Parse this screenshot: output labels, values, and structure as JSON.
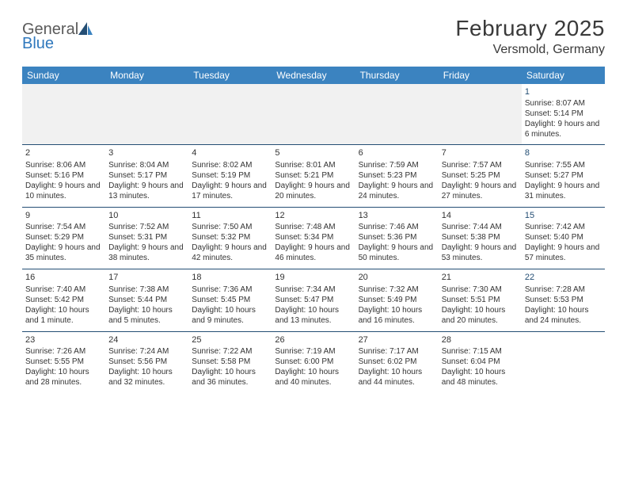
{
  "logo": {
    "part1": "General",
    "part2": "Blue"
  },
  "title": "February 2025",
  "location": "Versmold, Germany",
  "colors": {
    "header_bg": "#3b83c0",
    "header_text": "#ffffff",
    "separator": "#244e74",
    "logo_accent": "#2f78bd",
    "text": "#333333",
    "empty_row_bg": "#f1f1f1"
  },
  "weekdays": [
    "Sunday",
    "Monday",
    "Tuesday",
    "Wednesday",
    "Thursday",
    "Friday",
    "Saturday"
  ],
  "weeks": [
    [
      null,
      null,
      null,
      null,
      null,
      null,
      {
        "n": "1",
        "sr": "Sunrise: 8:07 AM",
        "ss": "Sunset: 5:14 PM",
        "dl": "Daylight: 9 hours and 6 minutes."
      }
    ],
    [
      {
        "n": "2",
        "sr": "Sunrise: 8:06 AM",
        "ss": "Sunset: 5:16 PM",
        "dl": "Daylight: 9 hours and 10 minutes."
      },
      {
        "n": "3",
        "sr": "Sunrise: 8:04 AM",
        "ss": "Sunset: 5:17 PM",
        "dl": "Daylight: 9 hours and 13 minutes."
      },
      {
        "n": "4",
        "sr": "Sunrise: 8:02 AM",
        "ss": "Sunset: 5:19 PM",
        "dl": "Daylight: 9 hours and 17 minutes."
      },
      {
        "n": "5",
        "sr": "Sunrise: 8:01 AM",
        "ss": "Sunset: 5:21 PM",
        "dl": "Daylight: 9 hours and 20 minutes."
      },
      {
        "n": "6",
        "sr": "Sunrise: 7:59 AM",
        "ss": "Sunset: 5:23 PM",
        "dl": "Daylight: 9 hours and 24 minutes."
      },
      {
        "n": "7",
        "sr": "Sunrise: 7:57 AM",
        "ss": "Sunset: 5:25 PM",
        "dl": "Daylight: 9 hours and 27 minutes."
      },
      {
        "n": "8",
        "sr": "Sunrise: 7:55 AM",
        "ss": "Sunset: 5:27 PM",
        "dl": "Daylight: 9 hours and 31 minutes."
      }
    ],
    [
      {
        "n": "9",
        "sr": "Sunrise: 7:54 AM",
        "ss": "Sunset: 5:29 PM",
        "dl": "Daylight: 9 hours and 35 minutes."
      },
      {
        "n": "10",
        "sr": "Sunrise: 7:52 AM",
        "ss": "Sunset: 5:31 PM",
        "dl": "Daylight: 9 hours and 38 minutes."
      },
      {
        "n": "11",
        "sr": "Sunrise: 7:50 AM",
        "ss": "Sunset: 5:32 PM",
        "dl": "Daylight: 9 hours and 42 minutes."
      },
      {
        "n": "12",
        "sr": "Sunrise: 7:48 AM",
        "ss": "Sunset: 5:34 PM",
        "dl": "Daylight: 9 hours and 46 minutes."
      },
      {
        "n": "13",
        "sr": "Sunrise: 7:46 AM",
        "ss": "Sunset: 5:36 PM",
        "dl": "Daylight: 9 hours and 50 minutes."
      },
      {
        "n": "14",
        "sr": "Sunrise: 7:44 AM",
        "ss": "Sunset: 5:38 PM",
        "dl": "Daylight: 9 hours and 53 minutes."
      },
      {
        "n": "15",
        "sr": "Sunrise: 7:42 AM",
        "ss": "Sunset: 5:40 PM",
        "dl": "Daylight: 9 hours and 57 minutes."
      }
    ],
    [
      {
        "n": "16",
        "sr": "Sunrise: 7:40 AM",
        "ss": "Sunset: 5:42 PM",
        "dl": "Daylight: 10 hours and 1 minute."
      },
      {
        "n": "17",
        "sr": "Sunrise: 7:38 AM",
        "ss": "Sunset: 5:44 PM",
        "dl": "Daylight: 10 hours and 5 minutes."
      },
      {
        "n": "18",
        "sr": "Sunrise: 7:36 AM",
        "ss": "Sunset: 5:45 PM",
        "dl": "Daylight: 10 hours and 9 minutes."
      },
      {
        "n": "19",
        "sr": "Sunrise: 7:34 AM",
        "ss": "Sunset: 5:47 PM",
        "dl": "Daylight: 10 hours and 13 minutes."
      },
      {
        "n": "20",
        "sr": "Sunrise: 7:32 AM",
        "ss": "Sunset: 5:49 PM",
        "dl": "Daylight: 10 hours and 16 minutes."
      },
      {
        "n": "21",
        "sr": "Sunrise: 7:30 AM",
        "ss": "Sunset: 5:51 PM",
        "dl": "Daylight: 10 hours and 20 minutes."
      },
      {
        "n": "22",
        "sr": "Sunrise: 7:28 AM",
        "ss": "Sunset: 5:53 PM",
        "dl": "Daylight: 10 hours and 24 minutes."
      }
    ],
    [
      {
        "n": "23",
        "sr": "Sunrise: 7:26 AM",
        "ss": "Sunset: 5:55 PM",
        "dl": "Daylight: 10 hours and 28 minutes."
      },
      {
        "n": "24",
        "sr": "Sunrise: 7:24 AM",
        "ss": "Sunset: 5:56 PM",
        "dl": "Daylight: 10 hours and 32 minutes."
      },
      {
        "n": "25",
        "sr": "Sunrise: 7:22 AM",
        "ss": "Sunset: 5:58 PM",
        "dl": "Daylight: 10 hours and 36 minutes."
      },
      {
        "n": "26",
        "sr": "Sunrise: 7:19 AM",
        "ss": "Sunset: 6:00 PM",
        "dl": "Daylight: 10 hours and 40 minutes."
      },
      {
        "n": "27",
        "sr": "Sunrise: 7:17 AM",
        "ss": "Sunset: 6:02 PM",
        "dl": "Daylight: 10 hours and 44 minutes."
      },
      {
        "n": "28",
        "sr": "Sunrise: 7:15 AM",
        "ss": "Sunset: 6:04 PM",
        "dl": "Daylight: 10 hours and 48 minutes."
      },
      null
    ]
  ]
}
